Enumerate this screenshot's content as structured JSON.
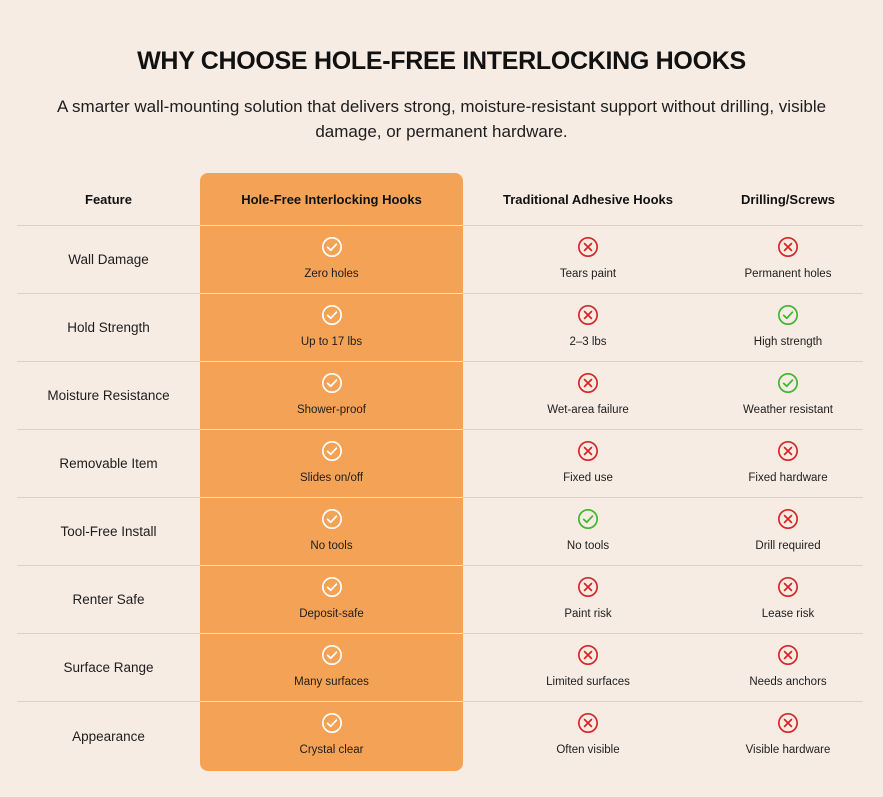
{
  "heading": "WHY CHOOSE HOLE-FREE INTERLOCKING HOOKS",
  "subtitle": "A smarter wall-mounting solution that delivers strong, moisture-resistant support without drilling, visible damage, or permanent hardware.",
  "colors": {
    "background": "#f7ece3",
    "highlight": "#f4a356",
    "check_green": "#3cb62a",
    "cross_red": "#d82424",
    "check_white": "#ffffff"
  },
  "table": {
    "headers": [
      "Feature",
      "Hole-Free Interlocking Hooks",
      "Traditional Adhesive Hooks",
      "Drilling/Screws"
    ],
    "rows": [
      {
        "feature": "Wall Damage",
        "cells": [
          {
            "icon": "check-icon",
            "text": "Zero holes"
          },
          {
            "icon": "cross-icon",
            "text": "Tears paint"
          },
          {
            "icon": "cross-icon",
            "text": "Permanent holes"
          }
        ]
      },
      {
        "feature": "Hold Strength",
        "cells": [
          {
            "icon": "check-icon",
            "text": "Up to 17 lbs"
          },
          {
            "icon": "cross-icon",
            "text": "2–3 lbs"
          },
          {
            "icon": "check-icon",
            "text": "High strength"
          }
        ]
      },
      {
        "feature": "Moisture Resistance",
        "cells": [
          {
            "icon": "check-icon",
            "text": "Shower-proof"
          },
          {
            "icon": "cross-icon",
            "text": "Wet-area failure"
          },
          {
            "icon": "check-icon",
            "text": "Weather resistant"
          }
        ]
      },
      {
        "feature": "Removable Item",
        "cells": [
          {
            "icon": "check-icon",
            "text": "Slides on/off"
          },
          {
            "icon": "cross-icon",
            "text": "Fixed use"
          },
          {
            "icon": "cross-icon",
            "text": "Fixed hardware"
          }
        ]
      },
      {
        "feature": "Tool-Free Install",
        "cells": [
          {
            "icon": "check-icon",
            "text": "No tools"
          },
          {
            "icon": "check-icon",
            "text": "No tools"
          },
          {
            "icon": "cross-icon",
            "text": "Drill required"
          }
        ]
      },
      {
        "feature": "Renter Safe",
        "cells": [
          {
            "icon": "check-icon",
            "text": "Deposit-safe"
          },
          {
            "icon": "cross-icon",
            "text": "Paint risk"
          },
          {
            "icon": "cross-icon",
            "text": "Lease risk"
          }
        ]
      },
      {
        "feature": "Surface Range",
        "cells": [
          {
            "icon": "check-icon",
            "text": "Many surfaces"
          },
          {
            "icon": "cross-icon",
            "text": "Limited surfaces"
          },
          {
            "icon": "cross-icon",
            "text": "Needs anchors"
          }
        ]
      },
      {
        "feature": "Appearance",
        "cells": [
          {
            "icon": "check-icon",
            "text": "Crystal clear"
          },
          {
            "icon": "cross-icon",
            "text": "Often visible"
          },
          {
            "icon": "cross-icon",
            "text": "Visible hardware"
          }
        ]
      }
    ]
  }
}
